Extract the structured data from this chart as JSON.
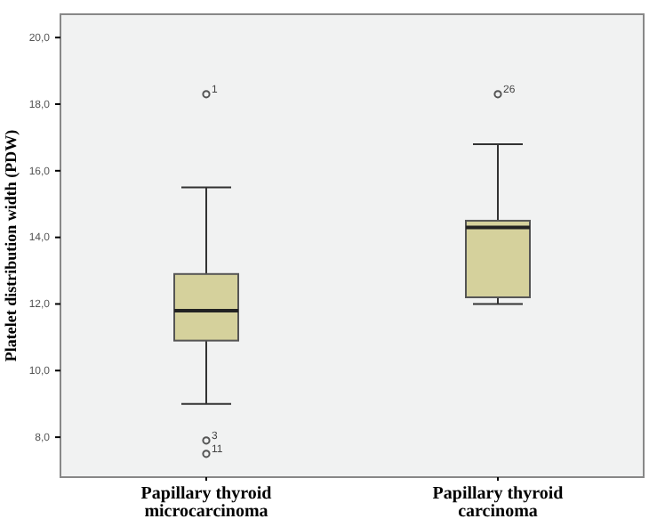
{
  "chart_data": {
    "type": "box",
    "ylabel": "Platelet distribution width (PDW)",
    "categories": [
      "Papillary thyroid microcarcinoma",
      "Papillary thyroid carcinoma"
    ],
    "boxes": [
      {
        "low": 9.0,
        "q1": 10.9,
        "median": 11.8,
        "q3": 12.9,
        "high": 15.5,
        "outliers": [
          18.3,
          7.9,
          7.5
        ]
      },
      {
        "low": 12.0,
        "q1": 12.2,
        "median": 14.3,
        "q3": 14.5,
        "high": 16.8,
        "outliers": [
          18.3
        ]
      }
    ],
    "color": "#d5d19c",
    "ylim": [
      6.8,
      20.7
    ],
    "yticks": [
      {
        "value": 8,
        "label": "8,0"
      },
      {
        "value": 10,
        "label": "10,0"
      },
      {
        "value": 12,
        "label": "12,0"
      },
      {
        "value": 14,
        "label": "14,0"
      },
      {
        "value": 16,
        "label": "16,0"
      },
      {
        "value": 18,
        "label": "18,0"
      },
      {
        "value": 20,
        "label": "20,0"
      }
    ],
    "annotations": [
      "1",
      "3",
      "11",
      "26"
    ],
    "grid": false
  }
}
